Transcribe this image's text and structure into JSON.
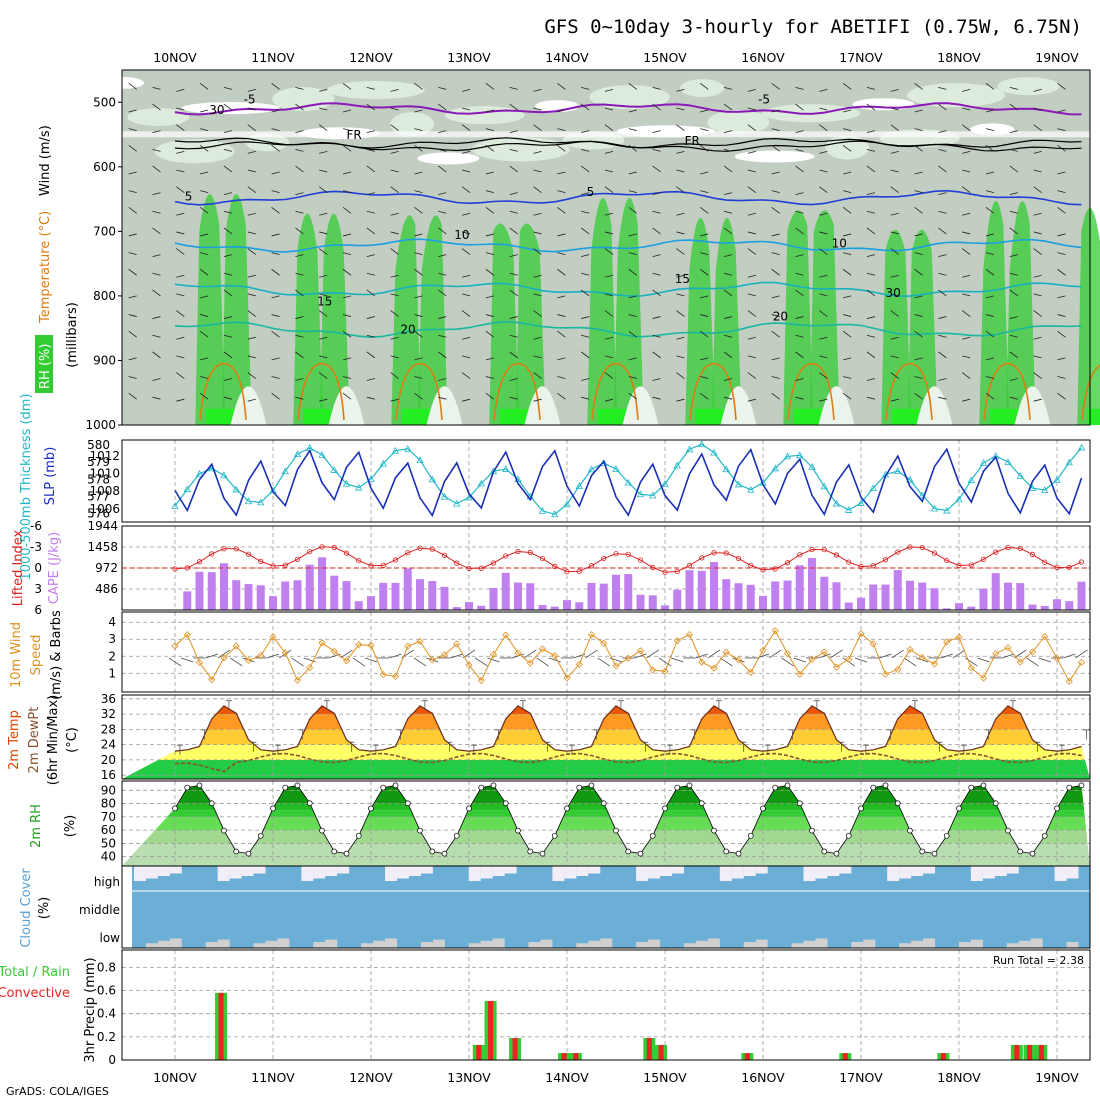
{
  "title": "GFS 0~10day 3-hourly for ABETIFI (0.75W, 6.75N)",
  "credit": "GrADS: COLA/IGES",
  "dates": [
    "10NOV",
    "11NOV",
    "12NOV",
    "13NOV",
    "14NOV",
    "15NOV",
    "16NOV",
    "17NOV",
    "18NOV",
    "19NOV"
  ],
  "colors": {
    "rh_green": "#33cc33",
    "rh_light": "#dcebdc",
    "rh_gray": "#c2cec2",
    "frz": "#000000",
    "t_neg5": "#8a1ab8",
    "t5": "#1f3fd6",
    "t10": "#1aa0e0",
    "t15": "#16b0c0",
    "t20": "#18b8a0",
    "t_warm": "#e07a10",
    "slp": "#1a2fb8",
    "thick": "#20b8c8",
    "li": "#dd2020",
    "cape": "#c080f0",
    "wind": "#e09020",
    "temp_fill_hi": "#dd2200",
    "dewpt": "#8a5030",
    "cloud": "#6baed6",
    "precip_total": "#33cc33",
    "precip_conv": "#ee2222"
  },
  "chart_data": [
    {
      "panel": "upper-air",
      "type": "heatmap",
      "ylabel_parts": [
        "Wind (m/s)",
        "Temperature (°C)",
        "RH (%)"
      ],
      "yaxis_label": "(millibars)",
      "yticks": [
        500,
        600,
        700,
        800,
        900,
        1000
      ],
      "ylim": [
        1000,
        450
      ],
      "contour_labels": [
        {
          "text": "-5",
          "x": 0.7,
          "p": 502
        },
        {
          "text": "-5",
          "x": 5.95,
          "p": 502
        },
        {
          "text": "FR",
          "x": 1.75,
          "p": 557
        },
        {
          "text": "FR",
          "x": 5.2,
          "p": 566
        },
        {
          "text": "5",
          "x": 0.1,
          "p": 652
        },
        {
          "text": "5",
          "x": 4.2,
          "p": 645
        },
        {
          "text": "10",
          "x": 2.85,
          "p": 712
        },
        {
          "text": "10",
          "x": 6.7,
          "p": 725
        },
        {
          "text": "15",
          "x": 1.45,
          "p": 815
        },
        {
          "text": "15",
          "x": 5.1,
          "p": 780
        },
        {
          "text": "20",
          "x": 2.3,
          "p": 858
        },
        {
          "text": "20",
          "x": 6.1,
          "p": 838
        },
        {
          "text": "30",
          "x": 0.35,
          "p": 518
        },
        {
          "text": "30",
          "x": 7.25,
          "p": 802
        }
      ]
    },
    {
      "panel": "slp-thickness",
      "type": "line",
      "ylabel_left": "1000-500mb Thickness (dm)",
      "ylabel_right": "SLP (mb)",
      "thick_ticks": [
        576,
        577,
        578,
        579,
        580
      ],
      "slp_ticks": [
        1006,
        1008,
        1010,
        1012
      ],
      "thick_lim": [
        575.5,
        580.3
      ],
      "slp_lim": [
        1004.5,
        1013.8
      ]
    },
    {
      "panel": "cape-li",
      "type": "bar",
      "ylabel_left": "Lifted Index",
      "ylabel_right": "CAPE (J/kg)",
      "li_ticks": [
        "-6",
        "-3",
        "0",
        "3",
        "6"
      ],
      "cape_ticks": [
        486,
        972,
        1458,
        1944
      ],
      "li_lim": [
        -6,
        6
      ],
      "cape_lim": [
        0,
        1944
      ]
    },
    {
      "panel": "wind10m",
      "type": "line",
      "ylabel": "10m Wind Speed (m/s) & Barbs",
      "yticks": [
        1,
        2,
        3,
        4
      ],
      "ylim": [
        -0.1,
        4.6
      ]
    },
    {
      "panel": "temp2m",
      "type": "area",
      "ylabel": "2m Temp 2m DewPt (6hr Min/Max) (°C)",
      "yticks": [
        16,
        20,
        24,
        28,
        32,
        36
      ],
      "ylim": [
        15,
        37
      ]
    },
    {
      "panel": "rh2m",
      "type": "area",
      "ylabel": "2m RH (%)",
      "yticks": [
        40,
        50,
        60,
        70,
        80,
        90
      ],
      "ylim": [
        33,
        97
      ]
    },
    {
      "panel": "cloud",
      "type": "heatmap",
      "ylabel": "Cloud Cover (%)",
      "levels": [
        "high",
        "middle",
        "low"
      ]
    },
    {
      "panel": "precip",
      "type": "bar",
      "ylabel": "3hr Precip (mm)",
      "legend_total": "Total / Rain",
      "legend_conv": "Convective",
      "run_total_label": "Run Total = 2.38",
      "yticks": [
        "0",
        "0.2",
        "0.4",
        "0.6",
        "0.8"
      ],
      "ylim": [
        0,
        0.95
      ],
      "values": [
        {
          "t": 0.47,
          "total": 0.58,
          "conv": 0.58
        },
        {
          "t": 3.1,
          "total": 0.13,
          "conv": 0.13
        },
        {
          "t": 3.22,
          "total": 0.51,
          "conv": 0.51
        },
        {
          "t": 3.47,
          "total": 0.19,
          "conv": 0.19
        },
        {
          "t": 3.97,
          "total": 0.06,
          "conv": 0.06
        },
        {
          "t": 4.09,
          "total": 0.06,
          "conv": 0.06
        },
        {
          "t": 4.84,
          "total": 0.19,
          "conv": 0.19
        },
        {
          "t": 4.96,
          "total": 0.13,
          "conv": 0.13
        },
        {
          "t": 5.84,
          "total": 0.06,
          "conv": 0.06
        },
        {
          "t": 6.84,
          "total": 0.06,
          "conv": 0.06
        },
        {
          "t": 7.84,
          "total": 0.06,
          "conv": 0.06
        },
        {
          "t": 8.59,
          "total": 0.13,
          "conv": 0.13
        },
        {
          "t": 8.72,
          "total": 0.13,
          "conv": 0.13
        },
        {
          "t": 8.84,
          "total": 0.13,
          "conv": 0.13
        }
      ]
    }
  ]
}
